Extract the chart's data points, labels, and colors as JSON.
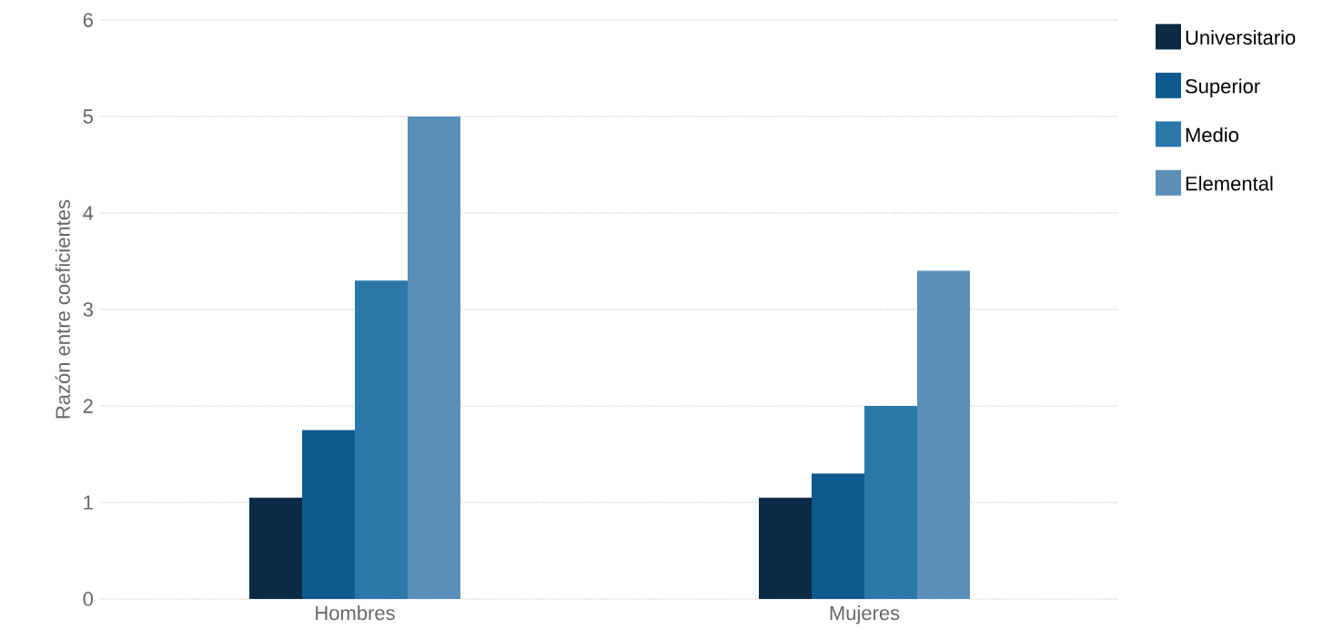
{
  "chart_data": {
    "type": "bar",
    "ylabel": "Razón entre coeficientes",
    "categories": [
      "Hombres",
      "Mujeres"
    ],
    "series": [
      {
        "name": "Universitario",
        "color": "#0b2a45",
        "values": [
          1.05,
          1.05
        ]
      },
      {
        "name": "Superior",
        "color": "#0d5a8e",
        "values": [
          1.75,
          1.3
        ]
      },
      {
        "name": "Medio",
        "color": "#2a78aa",
        "values": [
          3.3,
          2.0
        ]
      },
      {
        "name": "Elemental",
        "color": "#5b8fb8",
        "values": [
          5.0,
          3.4
        ]
      }
    ],
    "ylim": [
      0,
      6
    ],
    "yticks": [
      0,
      1,
      2,
      3,
      4,
      5,
      6
    ],
    "grid": "y",
    "legend": "top right"
  }
}
